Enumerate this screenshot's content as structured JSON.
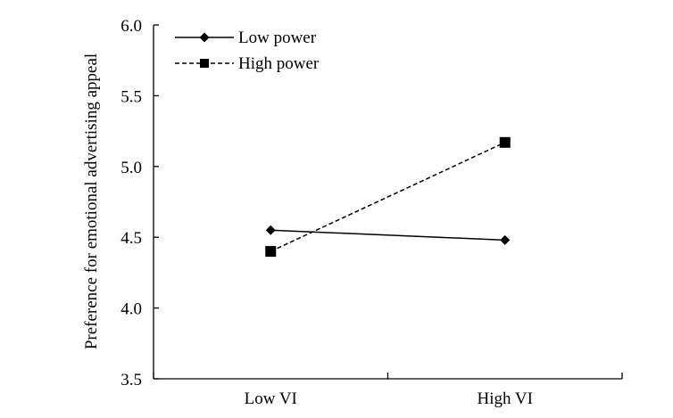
{
  "chart_data": {
    "type": "line",
    "title": "",
    "xlabel": "",
    "ylabel": "Preference for emotional advertising appeal",
    "categories": [
      "Low VI",
      "High VI"
    ],
    "ylim": [
      3.5,
      6.0
    ],
    "yticks": [
      "3.5",
      "4.0",
      "4.5",
      "5.0",
      "5.5",
      "6.0"
    ],
    "ytick_values": [
      3.5,
      4.0,
      4.5,
      5.0,
      5.5,
      6.0
    ],
    "grid": false,
    "legend_position": "top-left",
    "series": [
      {
        "name": "Low power",
        "values": [
          4.55,
          4.48
        ],
        "line_style": "solid",
        "marker": "diamond",
        "color": "#000000"
      },
      {
        "name": "High power",
        "values": [
          4.4,
          5.17
        ],
        "line_style": "dashed",
        "marker": "square",
        "color": "#000000"
      }
    ]
  }
}
